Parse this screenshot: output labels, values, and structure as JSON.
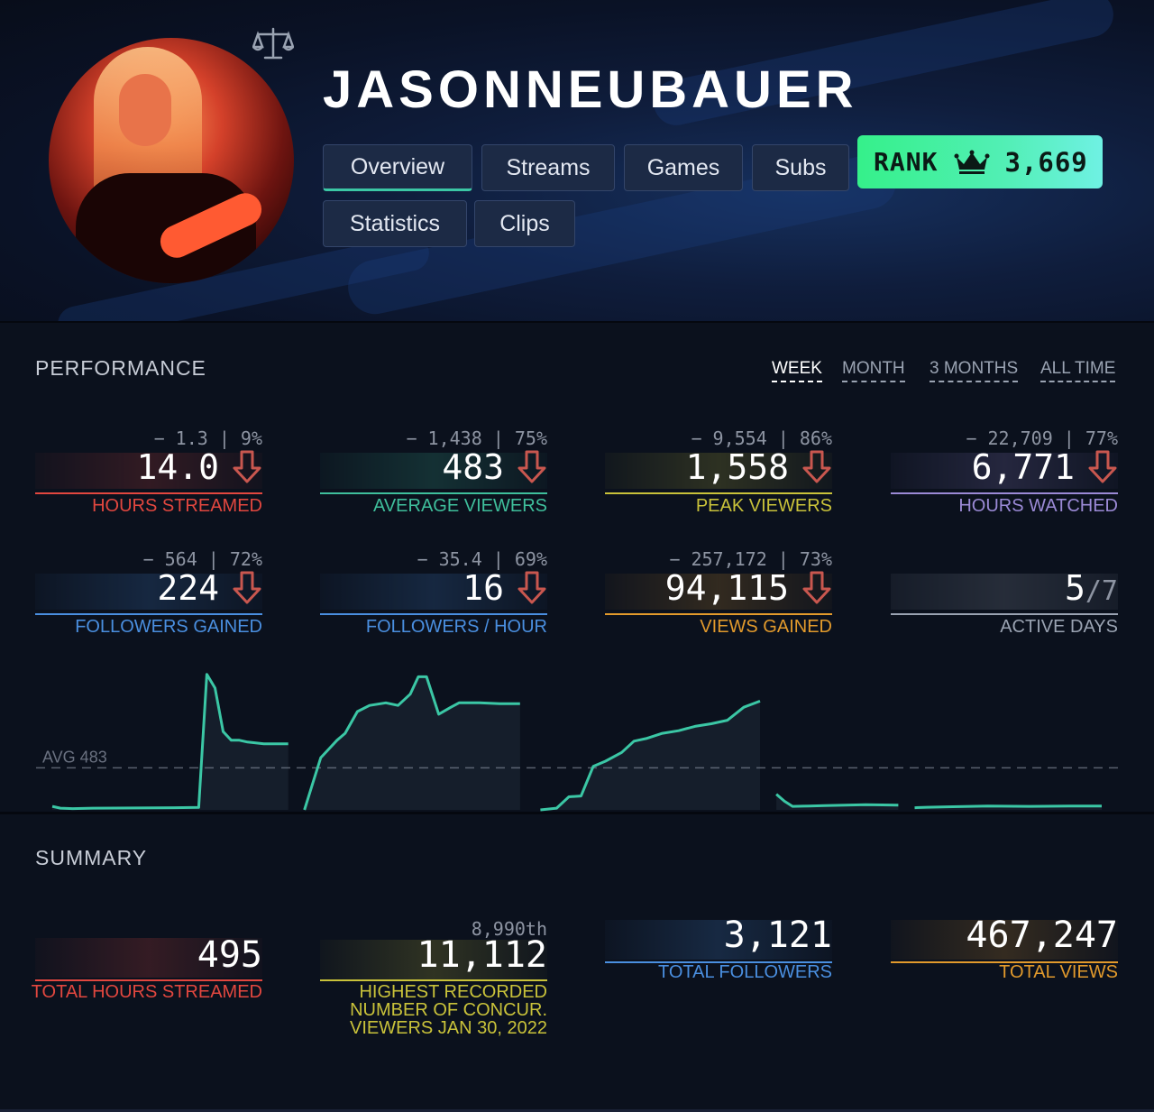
{
  "channel": {
    "name": "JASONNEUBAUER",
    "rank_label": "RANK",
    "rank_value": "3,669"
  },
  "tabs": [
    {
      "label": "Overview",
      "active": true
    },
    {
      "label": "Streams",
      "active": false
    },
    {
      "label": "Games",
      "active": false
    },
    {
      "label": "Subs",
      "active": false
    },
    {
      "label": "Statistics",
      "active": false
    },
    {
      "label": "Clips",
      "active": false
    }
  ],
  "performance": {
    "title": "PERFORMANCE",
    "periods": [
      "WEEK",
      "MONTH",
      "3 MONTHS",
      "ALL TIME"
    ],
    "active_period": "WEEK",
    "stats": [
      {
        "delta": "− 1.3 | 9%",
        "value": "14.0",
        "label": "HOURS STREAMED",
        "color": "#e2473f",
        "trend": "down"
      },
      {
        "delta": "− 1,438 | 75%",
        "value": "483",
        "label": "AVERAGE VIEWERS",
        "color": "#3fbf9c",
        "trend": "down"
      },
      {
        "delta": "− 9,554 | 86%",
        "value": "1,558",
        "label": "PEAK VIEWERS",
        "color": "#c9c23a",
        "trend": "down"
      },
      {
        "delta": "− 22,709 | 77%",
        "value": "6,771",
        "label": "HOURS WATCHED",
        "color": "#9b8ad6",
        "trend": "down"
      },
      {
        "delta": "− 564 | 72%",
        "value": "224",
        "label": "FOLLOWERS GAINED",
        "color": "#4a8fe0",
        "trend": "down"
      },
      {
        "delta": "− 35.4 | 69%",
        "value": "16",
        "label": "FOLLOWERS / HOUR",
        "color": "#4a8fe0",
        "trend": "down"
      },
      {
        "delta": "− 257,172 | 73%",
        "value": "94,115",
        "label": "VIEWS GAINED",
        "color": "#e29a2c",
        "trend": "down"
      }
    ],
    "active_days": {
      "value": "5",
      "of": "/7",
      "label": "ACTIVE DAYS",
      "color": "#9aa3b2"
    }
  },
  "chart_data": {
    "type": "area",
    "avg_label": "AVG 483",
    "avg_value": 483,
    "ylim": [
      0,
      1700
    ],
    "segments": [
      {
        "x": [
          0,
          2,
          5,
          10,
          20,
          30,
          36,
          38,
          40,
          42,
          44,
          46,
          48,
          52,
          58
        ],
        "y": [
          40,
          20,
          15,
          20,
          22,
          25,
          28,
          1558,
          1400,
          900,
          800,
          800,
          780,
          760,
          760
        ]
      },
      {
        "x": [
          62,
          64,
          66,
          68,
          70,
          72,
          75,
          78,
          82,
          85,
          88,
          90,
          92,
          95,
          98,
          100,
          105,
          110,
          115
        ],
        "y": [
          0,
          300,
          600,
          700,
          800,
          880,
          1130,
          1200,
          1230,
          1200,
          1330,
          1530,
          1530,
          1100,
          1180,
          1230,
          1230,
          1220,
          1220
        ]
      },
      {
        "x": [
          120,
          124,
          127,
          130,
          133,
          136,
          140,
          143,
          146,
          150,
          154,
          158,
          162,
          166,
          170,
          174
        ],
        "y": [
          0,
          20,
          150,
          160,
          500,
          560,
          660,
          790,
          820,
          880,
          910,
          960,
          990,
          1030,
          1180,
          1250
        ]
      },
      {
        "x": [
          178,
          180,
          182,
          186,
          190,
          200,
          208
        ],
        "y": [
          180,
          100,
          40,
          45,
          50,
          60,
          55
        ]
      },
      {
        "x": [
          212,
          215,
          220,
          230,
          240,
          250,
          258
        ],
        "y": [
          25,
          30,
          35,
          45,
          40,
          45,
          45
        ]
      }
    ]
  },
  "summary": {
    "title": "SUMMARY",
    "items": [
      {
        "value": "495",
        "label": "TOTAL HOURS STREAMED",
        "color": "#e2473f"
      },
      {
        "rank": "8,990th",
        "value": "11,112",
        "label_lines": [
          "HIGHEST RECORDED",
          "NUMBER OF CONCUR.",
          "VIEWERS JAN 30, 2022"
        ],
        "color": "#c9c23a"
      },
      {
        "value": "3,121",
        "label": "TOTAL FOLLOWERS",
        "color": "#4a8fe0"
      },
      {
        "value": "467,247",
        "label": "TOTAL VIEWS",
        "color": "#e29a2c"
      }
    ]
  },
  "icons": {
    "compare": "scale-icon",
    "rank": "crown-icon",
    "trend_down": "arrow-down-icon",
    "avatar": "channel-avatar"
  },
  "colors": {
    "accent": "#3bc7a5",
    "rank_badge_start": "#35f08a",
    "rank_badge_end": "#6ff1e3",
    "trend_down": "#e2473f"
  }
}
